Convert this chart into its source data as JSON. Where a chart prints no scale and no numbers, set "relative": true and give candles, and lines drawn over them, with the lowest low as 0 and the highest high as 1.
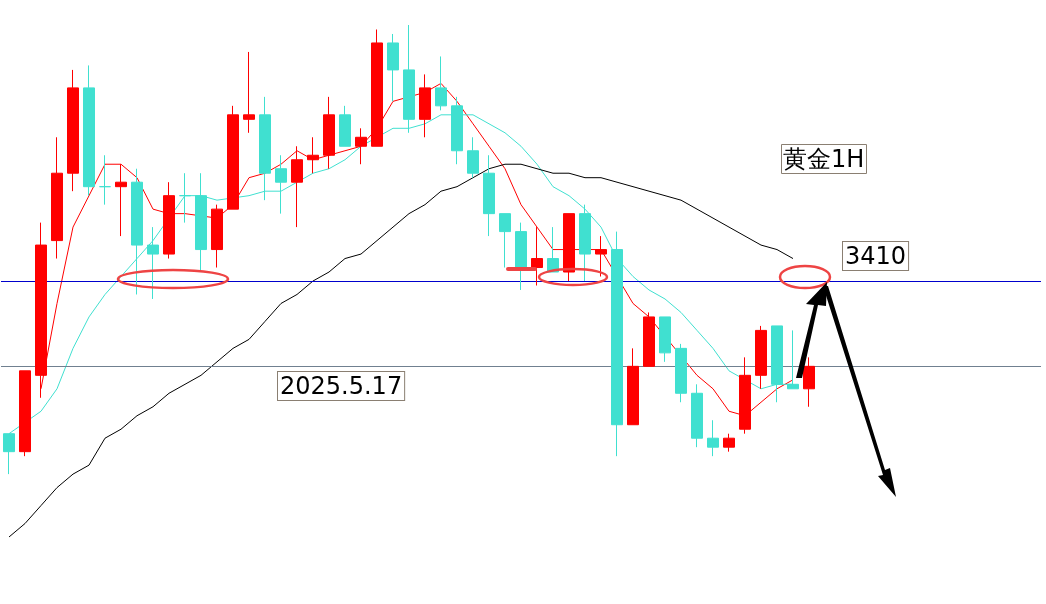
{
  "chart_data": {
    "type": "candlestick",
    "title": "黄金1H",
    "annotations": [
      "2025.5.17",
      "3410"
    ],
    "relative": true,
    "marker": "none",
    "line_style": "solid",
    "categories": [
      null,
      null,
      null,
      null,
      null,
      null,
      null,
      null,
      null,
      null,
      null,
      null,
      null,
      null,
      null,
      null,
      null,
      null,
      null,
      null,
      null,
      null,
      null,
      null,
      null,
      null,
      null,
      null,
      null,
      null,
      null,
      null,
      null,
      null,
      null,
      null,
      null,
      null,
      null,
      null,
      null,
      null,
      null,
      null,
      null,
      null,
      null,
      null,
      null,
      null,
      null
    ],
    "ohlc": [
      [
        0.09,
        0.09,
        0,
        0.05
      ],
      [
        0.05,
        0.23,
        0.04,
        0.23
      ],
      [
        0.22,
        0.56,
        0.17,
        0.51
      ],
      [
        0.52,
        0.75,
        0.48,
        0.67
      ],
      [
        0.67,
        0.9,
        0.63,
        0.86
      ],
      [
        0.86,
        0.91,
        0.62,
        0.64
      ],
      [
        0.64,
        0.71,
        0.6,
        0.64
      ],
      [
        0.64,
        0.69,
        0.53,
        0.65
      ],
      [
        0.65,
        0.68,
        0.4,
        0.51
      ],
      [
        0.51,
        0.55,
        0.39,
        0.49
      ],
      [
        0.49,
        0.65,
        0.48,
        0.62
      ],
      [
        0.62,
        0.67,
        0.56,
        0.62
      ],
      [
        0.62,
        0.67,
        0.45,
        0.5
      ],
      [
        0.5,
        0.6,
        0.46,
        0.59
      ],
      [
        0.59,
        0.82,
        0.59,
        0.8
      ],
      [
        0.79,
        0.94,
        0.76,
        0.8
      ],
      [
        0.8,
        0.84,
        0.61,
        0.67
      ],
      [
        0.68,
        0.71,
        0.58,
        0.65
      ],
      [
        0.65,
        0.73,
        0.55,
        0.7
      ],
      [
        0.7,
        0.75,
        0.67,
        0.71
      ],
      [
        0.71,
        0.84,
        0.68,
        0.8
      ],
      [
        0.8,
        0.82,
        0.73,
        0.73
      ],
      [
        0.73,
        0.77,
        0.69,
        0.75
      ],
      [
        0.73,
        0.99,
        0.73,
        0.96
      ],
      [
        0.96,
        0.98,
        0.83,
        0.9
      ],
      [
        0.9,
        1,
        0.76,
        0.79
      ],
      [
        0.79,
        0.89,
        0.75,
        0.86
      ],
      [
        0.86,
        0.93,
        0.81,
        0.82
      ],
      [
        0.82,
        0.84,
        0.69,
        0.72
      ],
      [
        0.72,
        0.75,
        0.66,
        0.67
      ],
      [
        0.67,
        0.71,
        0.53,
        0.58
      ],
      [
        0.58,
        0.58,
        0.46,
        0.54
      ],
      [
        0.54,
        0.56,
        0.41,
        0.46
      ],
      [
        0.46,
        0.55,
        0.42,
        0.48
      ],
      [
        0.48,
        0.55,
        0.45,
        0.45
      ],
      [
        0.45,
        0.58,
        0.43,
        0.58
      ],
      [
        0.58,
        0.6,
        0.43,
        0.49
      ],
      [
        0.49,
        0.53,
        0.44,
        0.5
      ],
      [
        0.5,
        0.54,
        0.04,
        0.11
      ],
      [
        0.11,
        0.28,
        0.11,
        0.24
      ],
      [
        0.24,
        0.36,
        0.24,
        0.35
      ],
      [
        0.35,
        0.35,
        0.25,
        0.27
      ],
      [
        0.28,
        0.29,
        0.16,
        0.18
      ],
      [
        0.18,
        0.2,
        0.06,
        0.08
      ],
      [
        0.08,
        0.12,
        0.04,
        0.06
      ],
      [
        0.06,
        0.09,
        0.05,
        0.08
      ],
      [
        0.1,
        0.26,
        0.09,
        0.22
      ],
      [
        0.22,
        0.33,
        0.19,
        0.32
      ],
      [
        0.33,
        0.33,
        0.16,
        0.2
      ],
      [
        0.2,
        0.32,
        0.19,
        0.19
      ],
      [
        0.19,
        0.26,
        0.15,
        0.24
      ]
    ],
    "colors": [
      "#40e0d0",
      "#ff0000",
      "#ff0000",
      "#ff0000",
      "#ff0000",
      "#40e0d0",
      "#40e0d0",
      "#ff0000",
      "#40e0d0",
      "#40e0d0",
      "#ff0000",
      "#40e0d0",
      "#40e0d0",
      "#ff0000",
      "#ff0000",
      "#ff0000",
      "#40e0d0",
      "#40e0d0",
      "#ff0000",
      "#ff0000",
      "#ff0000",
      "#40e0d0",
      "#ff0000",
      "#ff0000",
      "#40e0d0",
      "#40e0d0",
      "#ff0000",
      "#40e0d0",
      "#40e0d0",
      "#40e0d0",
      "#40e0d0",
      "#40e0d0",
      "#40e0d0",
      "#ff0000",
      "#40e0d0",
      "#ff0000",
      "#40e0d0",
      "#ff0000",
      "#40e0d0",
      "#ff0000",
      "#ff0000",
      "#40e0d0",
      "#40e0d0",
      "#40e0d0",
      "#40e0d0",
      "#ff0000",
      "#ff0000",
      "#ff0000",
      "#40e0d0",
      "#40e0d0",
      "#ff0000"
    ],
    "series": [
      {
        "type": "line",
        "color": "#ff0000",
        "values": [
          null,
          null,
          0.19,
          0.38,
          0.55,
          null,
          0.69,
          0.69,
          0.66,
          0.59,
          0.58,
          0.58,
          null,
          0.57,
          0.6,
          0.66,
          0.67,
          0.69,
          0.72,
          0.7,
          0.71,
          0.72,
          0.73,
          0.77,
          0.83,
          null,
          0.85,
          0.87,
          0.83,
          0.78,
          0.73,
          0.68,
          0.6,
          0.55,
          0.5,
          0.5,
          null,
          0.5,
          null,
          0.38,
          0.35,
          null,
          null,
          0.22,
          0.19,
          0.14,
          0.13,
          0.16,
          0.19,
          0.21,
          null
        ]
      },
      {
        "type": "line",
        "color": "#40e0d0",
        "values": [
          0.09,
          null,
          0.14,
          0.19,
          0.28,
          0.35,
          0.4,
          0.44,
          0.48,
          0.52,
          null,
          0.62,
          0.62,
          0.61,
          null,
          0.62,
          0.63,
          0.63,
          0.65,
          0.67,
          0.68,
          0.7,
          0.73,
          null,
          0.77,
          0.77,
          0.78,
          0.8,
          0.8,
          0.8,
          0.78,
          0.76,
          0.73,
          0.69,
          0.64,
          0.62,
          0.59,
          0.55,
          0.48,
          0.44,
          0.41,
          0.39,
          0.36,
          0.32,
          0.28,
          0.23,
          null,
          0.19,
          0.2,
          0.2,
          null
        ]
      },
      {
        "type": "line",
        "color": "#000000",
        "values": [
          -0.14,
          -0.11,
          -0.07,
          -0.03,
          0,
          0.02,
          0.08,
          0.1,
          0.13,
          0.15,
          0.18,
          0.2,
          0.22,
          0.25,
          0.28,
          0.3,
          0.34,
          0.38,
          0.4,
          0.43,
          0.45,
          0.48,
          0.49,
          0.52,
          0.55,
          0.58,
          0.6,
          0.63,
          0.64,
          0.66,
          0.68,
          0.69,
          0.69,
          0.68,
          0.67,
          0.67,
          0.66,
          0.66,
          0.65,
          0.64,
          0.63,
          0.62,
          0.61,
          0.59,
          0.57,
          0.55,
          0.53,
          0.51,
          0.5,
          0.48,
          null
        ]
      }
    ],
    "ref_lines": [
      {
        "axis": "y",
        "value": 0.43,
        "color": "#0000cc"
      },
      {
        "axis": "y",
        "value": 0.24,
        "color": "#708090"
      }
    ]
  }
}
